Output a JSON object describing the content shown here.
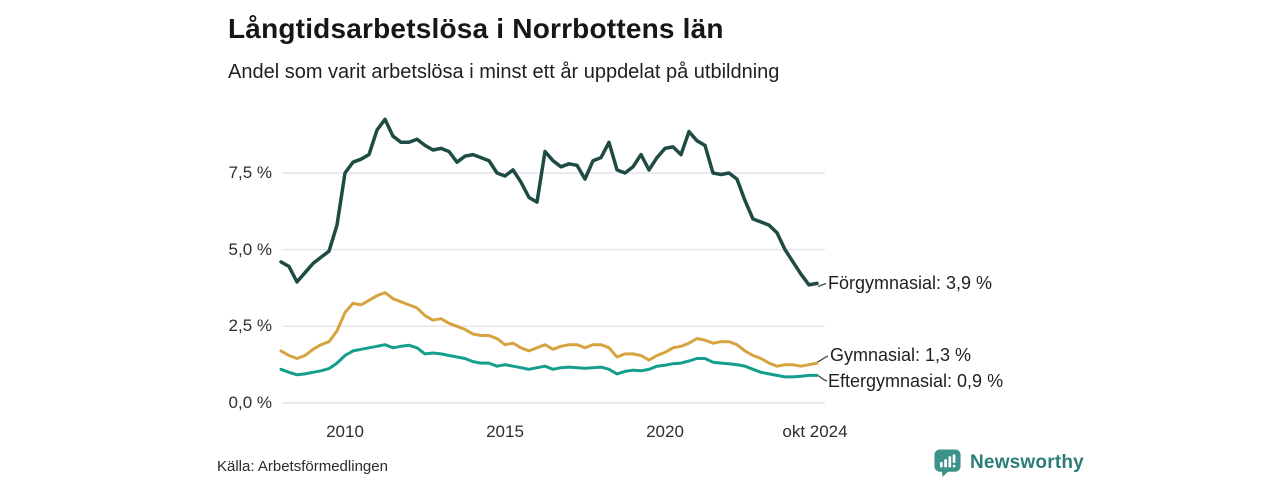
{
  "header": {
    "title": "Långtidsarbetslösa i Norrbottens län",
    "subtitle": "Andel som varit arbetslösa i minst ett år uppdelat på utbildning"
  },
  "chart_data": {
    "type": "line",
    "title": "Långtidsarbetslösa i Norrbottens län",
    "subtitle": "Andel som varit arbetslösa i minst ett år uppdelat på utbildning",
    "unit": "%",
    "grid": "horizontal",
    "legend_position": "end-of-line-labels",
    "y_axis": {
      "ticks": [
        {
          "label": "0,0 %",
          "value": 0
        },
        {
          "label": "2,5 %",
          "value": 2.5
        },
        {
          "label": "5,0 %",
          "value": 5.0
        },
        {
          "label": "7,5 %",
          "value": 7.5
        }
      ],
      "range": [
        0,
        9.8
      ]
    },
    "x_axis": {
      "ticks": [
        {
          "label": "2010",
          "year": 2010
        },
        {
          "label": "2015",
          "year": 2015
        },
        {
          "label": "2020",
          "year": 2020
        },
        {
          "label": "okt 2024",
          "year": 2024.75
        }
      ],
      "range": [
        2008,
        2024.9
      ]
    },
    "x": [
      2008.0,
      2008.25,
      2008.5,
      2008.75,
      2009.0,
      2009.25,
      2009.5,
      2009.75,
      2010.0,
      2010.25,
      2010.5,
      2010.75,
      2011.0,
      2011.25,
      2011.5,
      2011.75,
      2012.0,
      2012.25,
      2012.5,
      2012.75,
      2013.0,
      2013.25,
      2013.5,
      2013.75,
      2014.0,
      2014.25,
      2014.5,
      2014.75,
      2015.0,
      2015.25,
      2015.5,
      2015.75,
      2016.0,
      2016.25,
      2016.5,
      2016.75,
      2017.0,
      2017.25,
      2017.5,
      2017.75,
      2018.0,
      2018.25,
      2018.5,
      2018.75,
      2019.0,
      2019.25,
      2019.5,
      2019.75,
      2020.0,
      2020.25,
      2020.5,
      2020.75,
      2021.0,
      2021.25,
      2021.5,
      2021.75,
      2022.0,
      2022.25,
      2022.5,
      2022.75,
      2023.0,
      2023.25,
      2023.5,
      2023.75,
      2024.0,
      2024.25,
      2024.5,
      2024.75
    ],
    "series": [
      {
        "id": "forgymnasial",
        "name": "Förgymnasial",
        "end_label": "Förgymnasial: 3,9 %",
        "latest_value": "3,9 %",
        "color": "#1e4b44",
        "values": [
          4.6,
          4.45,
          3.95,
          4.25,
          4.55,
          4.75,
          4.95,
          5.8,
          7.5,
          7.85,
          7.95,
          8.1,
          8.9,
          9.25,
          8.7,
          8.5,
          8.5,
          8.6,
          8.4,
          8.25,
          8.3,
          8.2,
          7.85,
          8.05,
          8.1,
          8.0,
          7.9,
          7.5,
          7.4,
          7.6,
          7.2,
          6.7,
          6.55,
          8.2,
          7.9,
          7.7,
          7.8,
          7.75,
          7.3,
          7.9,
          8.0,
          8.5,
          7.6,
          7.5,
          7.7,
          8.1,
          7.6,
          8.0,
          8.3,
          8.35,
          8.1,
          8.85,
          8.55,
          8.4,
          7.5,
          7.45,
          7.5,
          7.3,
          6.6,
          6.0,
          5.9,
          5.8,
          5.55,
          5.0,
          4.6,
          4.2,
          3.85,
          3.9
        ]
      },
      {
        "id": "gymnasial",
        "name": "Gymnasial",
        "end_label": "Gymnasial: 1,3 %",
        "latest_value": "1,3 %",
        "color": "#d7a33f",
        "values": [
          1.7,
          1.55,
          1.45,
          1.55,
          1.75,
          1.9,
          2.0,
          2.35,
          2.95,
          3.25,
          3.2,
          3.35,
          3.5,
          3.6,
          3.4,
          3.3,
          3.2,
          3.1,
          2.85,
          2.7,
          2.75,
          2.6,
          2.5,
          2.4,
          2.25,
          2.2,
          2.2,
          2.1,
          1.9,
          1.95,
          1.8,
          1.7,
          1.8,
          1.9,
          1.75,
          1.85,
          1.9,
          1.9,
          1.8,
          1.9,
          1.9,
          1.8,
          1.5,
          1.6,
          1.6,
          1.55,
          1.4,
          1.55,
          1.65,
          1.8,
          1.85,
          1.95,
          2.1,
          2.05,
          1.95,
          2.0,
          2.0,
          1.9,
          1.7,
          1.55,
          1.45,
          1.3,
          1.2,
          1.25,
          1.25,
          1.2,
          1.25,
          1.3
        ]
      },
      {
        "id": "eftergymnasial",
        "name": "Eftergymnasial",
        "end_label": "Eftergymnasial: 0,9 %",
        "latest_value": "0,9 %",
        "color": "#149e8c",
        "values": [
          1.1,
          1.0,
          0.92,
          0.95,
          1.0,
          1.05,
          1.12,
          1.3,
          1.55,
          1.7,
          1.75,
          1.8,
          1.85,
          1.9,
          1.8,
          1.85,
          1.88,
          1.8,
          1.6,
          1.63,
          1.6,
          1.55,
          1.5,
          1.45,
          1.35,
          1.3,
          1.3,
          1.2,
          1.25,
          1.2,
          1.15,
          1.1,
          1.15,
          1.2,
          1.1,
          1.15,
          1.17,
          1.15,
          1.13,
          1.15,
          1.17,
          1.1,
          0.95,
          1.03,
          1.07,
          1.05,
          1.1,
          1.2,
          1.23,
          1.28,
          1.3,
          1.37,
          1.45,
          1.45,
          1.33,
          1.3,
          1.28,
          1.25,
          1.2,
          1.1,
          1.0,
          0.95,
          0.9,
          0.85,
          0.85,
          0.87,
          0.9,
          0.9
        ]
      }
    ]
  },
  "footer": {
    "source": "Källa: Arbetsförmedlingen",
    "brand": "Newsworthy",
    "brand_icon": "bar-chart-speech-bubble-icon",
    "brand_color": "#2d7c77"
  }
}
